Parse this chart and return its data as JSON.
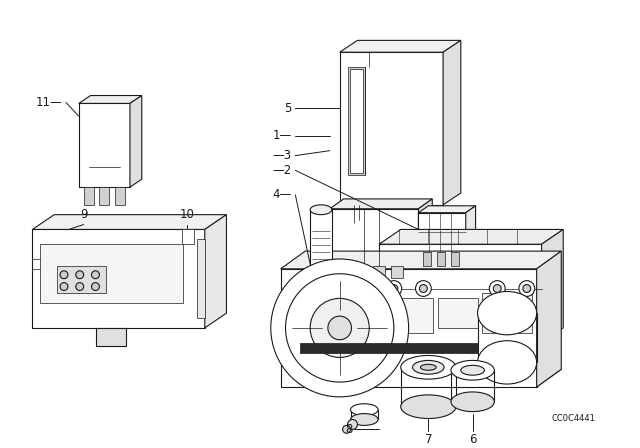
{
  "background_color": "#ffffff",
  "line_color": "#1a1a1a",
  "label_color": "#1a1a1a",
  "watermark": "CC0C4441",
  "lw": 0.8,
  "lw_thin": 0.5,
  "lw_thick": 1.2
}
